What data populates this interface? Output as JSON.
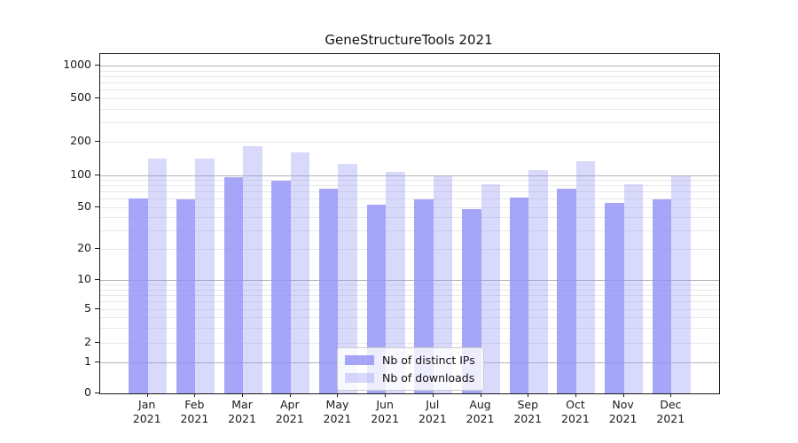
{
  "chart_data": {
    "type": "bar",
    "title": "GeneStructureTools 2021",
    "months": [
      "Jan",
      "Feb",
      "Mar",
      "Apr",
      "May",
      "Jun",
      "Jul",
      "Aug",
      "Sep",
      "Oct",
      "Nov",
      "Dec"
    ],
    "year": "2021",
    "series": [
      {
        "name": "Nb of distinct IPs",
        "values": [
          60,
          59,
          95,
          88,
          74,
          52,
          59,
          48,
          61,
          74,
          55,
          59
        ]
      },
      {
        "name": "Nb of downloads",
        "values": [
          140,
          140,
          180,
          160,
          125,
          106,
          98,
          82,
          111,
          133,
          81,
          97
        ]
      }
    ],
    "yscale": "symlog",
    "ylim": [
      0,
      1270
    ],
    "y_tick_labels": [
      "1000",
      "500",
      "200",
      "100",
      "50",
      "20",
      "10",
      "5",
      "2",
      "1",
      "0"
    ],
    "y_tick_values": [
      1000,
      500,
      200,
      100,
      50,
      20,
      10,
      5,
      2,
      1,
      0
    ],
    "y_major_gridlines": [
      1,
      10,
      100,
      1000
    ],
    "y_minor_gridlines": [
      2,
      3,
      4,
      5,
      6,
      7,
      8,
      9,
      20,
      30,
      40,
      50,
      60,
      70,
      80,
      90,
      200,
      300,
      400,
      500,
      600,
      700,
      800,
      900
    ],
    "grid": true,
    "legend_position": "lower center",
    "colors": {
      "bar_base": "#9292f7",
      "ips_alpha": 0.82,
      "downloads_alpha": 0.35,
      "major_grid": "#b4b4b4",
      "minor_grid": "#e9e9e9",
      "spine": "#1a1a1a",
      "text": "#1a1a1a"
    }
  }
}
